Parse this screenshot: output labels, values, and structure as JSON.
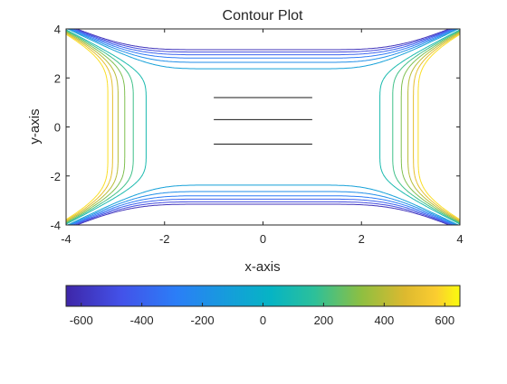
{
  "chart_data": {
    "type": "contour",
    "title": "Contour Plot",
    "xlabel": "x-axis",
    "ylabel": "y-axis",
    "xlim": [
      -4,
      4
    ],
    "ylim": [
      -4,
      4
    ],
    "xticks": [
      -4,
      -2,
      0,
      2,
      4
    ],
    "yticks": [
      -4,
      -2,
      0,
      2,
      4
    ],
    "grid": false,
    "colormap": "parula",
    "colorbar": {
      "location": "bottom",
      "clim": [
        -650,
        650
      ],
      "ticks": [
        -600,
        -400,
        -200,
        0,
        200,
        400,
        600
      ]
    },
    "levels": [
      -600,
      -500,
      -400,
      -300,
      -200,
      -100,
      0,
      100,
      200,
      300,
      400,
      500,
      600
    ],
    "flat_segments": [
      {
        "x": [
          -1,
          1
        ],
        "y": 1.2
      },
      {
        "x": [
          -1,
          1
        ],
        "y": 0.3
      },
      {
        "x": [
          -1,
          1
        ],
        "y": -0.7
      }
    ]
  }
}
